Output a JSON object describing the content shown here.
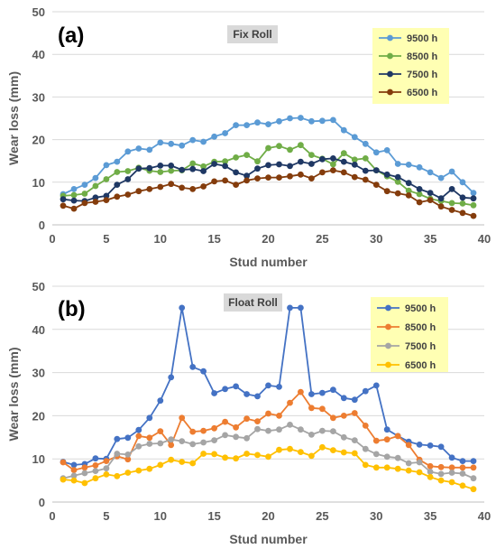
{
  "chart_data": [
    {
      "type": "line",
      "panel_label": "(a)",
      "tag": "Fix Roll",
      "xlabel": "Stud number",
      "ylabel": "Wear loss (mm)",
      "xlim": [
        0,
        40
      ],
      "ylim": [
        0,
        50
      ],
      "xticks": [
        0,
        5,
        10,
        15,
        20,
        25,
        30,
        35,
        40
      ],
      "yticks": [
        0,
        10,
        20,
        30,
        40,
        50
      ],
      "legend_position": "top-right",
      "x": [
        1,
        2,
        3,
        4,
        5,
        6,
        7,
        8,
        9,
        10,
        11,
        12,
        13,
        14,
        15,
        16,
        17,
        18,
        19,
        20,
        21,
        22,
        23,
        24,
        25,
        26,
        27,
        28,
        29,
        30,
        31,
        32,
        33,
        34,
        35,
        36,
        37,
        38,
        39
      ],
      "series": [
        {
          "name": "9500 h",
          "color": "#5b9bd5",
          "values": [
            7.2,
            8.4,
            9.4,
            11.0,
            14.0,
            14.8,
            17.2,
            17.9,
            17.6,
            19.3,
            19.0,
            18.6,
            19.9,
            19.5,
            20.7,
            21.5,
            23.4,
            23.4,
            24.0,
            23.6,
            24.3,
            25.0,
            25.1,
            24.3,
            24.4,
            24.6,
            22.2,
            20.6,
            19.0,
            17.0,
            17.5,
            14.3,
            14.1,
            13.5,
            12.3,
            11.0,
            12.5,
            10.0,
            7.5
          ]
        },
        {
          "name": "8500 h",
          "color": "#70ad47",
          "values": [
            6.8,
            7.0,
            7.3,
            9.1,
            10.7,
            12.4,
            12.6,
            13.4,
            12.7,
            12.4,
            12.7,
            12.8,
            14.4,
            13.7,
            14.8,
            14.9,
            15.8,
            16.4,
            14.9,
            18.0,
            18.5,
            17.6,
            18.7,
            16.4,
            15.5,
            14.2,
            16.8,
            15.3,
            15.6,
            12.8,
            11.4,
            10.1,
            8.0,
            7.2,
            6.1,
            5.6,
            5.1,
            5.0,
            4.6
          ]
        },
        {
          "name": "7500 h",
          "color": "#1f3864",
          "values": [
            6.0,
            5.7,
            5.6,
            6.4,
            6.8,
            9.4,
            10.7,
            13.2,
            13.3,
            13.9,
            13.9,
            12.9,
            13.1,
            12.6,
            14.3,
            13.8,
            12.3,
            11.5,
            13.2,
            14.0,
            14.2,
            13.8,
            14.8,
            14.3,
            15.4,
            15.6,
            14.8,
            14.1,
            12.7,
            12.8,
            11.8,
            11.2,
            9.8,
            8.4,
            7.5,
            6.2,
            8.4,
            6.4,
            6.2
          ]
        },
        {
          "name": "6500 h",
          "color": "#843c0c",
          "values": [
            4.5,
            3.8,
            5.1,
            5.4,
            5.8,
            6.6,
            7.1,
            7.9,
            8.4,
            8.9,
            9.6,
            8.7,
            8.4,
            9.0,
            10.2,
            10.4,
            9.4,
            10.4,
            10.9,
            11.1,
            11.1,
            11.4,
            11.8,
            10.9,
            12.3,
            12.8,
            12.3,
            11.2,
            10.6,
            9.4,
            7.9,
            7.4,
            6.9,
            5.3,
            5.8,
            4.3,
            3.5,
            2.8,
            2.1
          ]
        }
      ]
    },
    {
      "type": "line",
      "panel_label": "(b)",
      "tag": "Float Roll",
      "xlabel": "Stud number",
      "ylabel": "Wear loss (mm)",
      "xlim": [
        0,
        40
      ],
      "ylim": [
        0,
        50
      ],
      "xticks": [
        0,
        5,
        10,
        15,
        20,
        25,
        30,
        35,
        40
      ],
      "yticks": [
        0,
        10,
        20,
        30,
        40,
        50
      ],
      "legend_position": "top-right",
      "x": [
        1,
        2,
        3,
        4,
        5,
        6,
        7,
        8,
        9,
        10,
        11,
        12,
        13,
        14,
        15,
        16,
        17,
        18,
        19,
        20,
        21,
        22,
        23,
        24,
        25,
        26,
        27,
        28,
        29,
        30,
        31,
        32,
        33,
        34,
        35,
        36,
        37,
        38,
        39
      ],
      "series": [
        {
          "name": "9500 h",
          "color": "#4472c4",
          "values": [
            9.3,
            8.6,
            8.8,
            10.1,
            10.0,
            14.6,
            14.9,
            16.7,
            19.5,
            23.5,
            28.9,
            45.0,
            31.3,
            30.3,
            25.2,
            26.2,
            26.8,
            25.0,
            24.5,
            27.0,
            26.7,
            45.0,
            45.0,
            25.0,
            25.3,
            26.0,
            24.1,
            23.7,
            25.7,
            27.0,
            16.8,
            15.3,
            14.0,
            13.3,
            13.1,
            12.8,
            10.3,
            9.5,
            9.5
          ]
        },
        {
          "name": "8500 h",
          "color": "#ed7d31",
          "values": [
            9.2,
            7.4,
            8.0,
            8.5,
            9.5,
            10.6,
            9.9,
            15.3,
            14.9,
            16.4,
            13.2,
            19.5,
            16.3,
            16.5,
            17.1,
            18.6,
            17.3,
            19.3,
            18.7,
            20.5,
            20.0,
            23.0,
            25.5,
            21.8,
            21.6,
            19.5,
            20.0,
            20.6,
            17.7,
            14.2,
            14.5,
            15.3,
            13.2,
            9.8,
            8.3,
            8.1,
            8.0,
            8.0,
            8.0
          ]
        },
        {
          "name": "7500 h",
          "color": "#a5a5a5",
          "values": [
            5.5,
            6.1,
            6.7,
            7.2,
            7.8,
            11.2,
            11.0,
            12.9,
            13.5,
            13.6,
            14.5,
            14.1,
            13.4,
            13.8,
            14.3,
            15.5,
            15.1,
            14.8,
            16.9,
            16.5,
            16.8,
            17.9,
            16.8,
            15.6,
            16.5,
            16.4,
            15.0,
            14.3,
            12.3,
            11.1,
            10.5,
            10.2,
            9.0,
            9.2,
            7.0,
            6.5,
            6.8,
            6.6,
            5.5
          ]
        },
        {
          "name": "6500 h",
          "color": "#ffc000",
          "values": [
            5.2,
            5.0,
            4.4,
            5.5,
            6.4,
            6.0,
            6.8,
            7.3,
            7.7,
            8.6,
            9.8,
            9.3,
            9.0,
            11.2,
            11.1,
            10.3,
            10.1,
            11.2,
            10.9,
            10.5,
            12.1,
            12.3,
            11.6,
            10.7,
            12.7,
            12.0,
            11.5,
            11.3,
            8.6,
            8.0,
            8.0,
            7.7,
            7.3,
            6.9,
            5.8,
            5.0,
            4.6,
            3.8,
            3.0
          ]
        }
      ]
    }
  ]
}
